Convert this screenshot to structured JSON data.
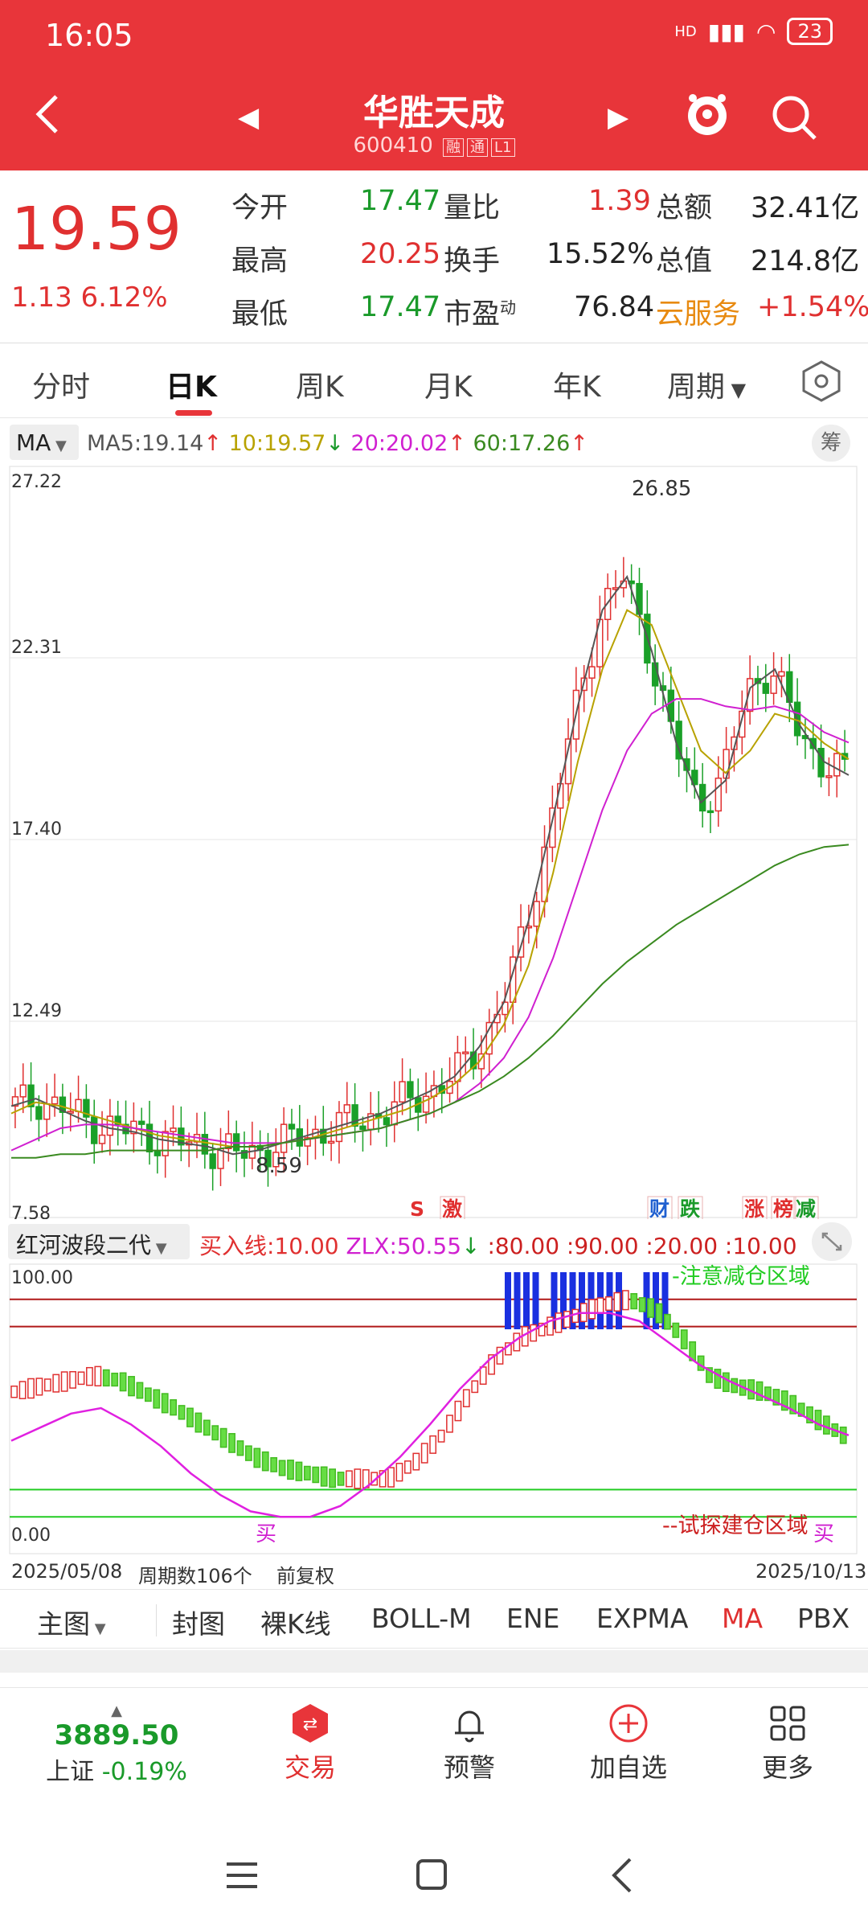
{
  "status_bar": {
    "time": "16:05",
    "battery": "23",
    "signal": "HD"
  },
  "header": {
    "stock_name": "华胜天成",
    "stock_code": "600410",
    "tags": [
      "融",
      "通",
      "L1"
    ]
  },
  "quote": {
    "price": "19.59",
    "change": "1.13",
    "change_pct": "6.12%",
    "open_label": "今开",
    "open": "17.47",
    "vol_ratio_label": "量比",
    "vol_ratio": "1.39",
    "amount_label": "总额",
    "amount": "32.41亿",
    "high_label": "最高",
    "high": "20.25",
    "turnover_label": "换手",
    "turnover": "15.52%",
    "mktcap_label": "总值",
    "mktcap": "214.8亿",
    "low_label": "最低",
    "low": "17.47",
    "pe_label": "市盈",
    "pe_sup": "动",
    "pe": "76.84",
    "sector_label": "云服务",
    "sector_change": "+1.54%"
  },
  "period_tabs": [
    "分时",
    "日K",
    "周K",
    "月K",
    "年K",
    "周期"
  ],
  "ma_legend": {
    "selector": "MA",
    "ma5": "MA5:19.14",
    "ma10": "10:19.57",
    "ma20": "20:20.02",
    "ma60": "60:17.26",
    "chip_label": "筹",
    "colors": {
      "ma5": "#555555",
      "ma10": "#b8a200",
      "ma20": "#d020d0",
      "ma60": "#3a8a20"
    }
  },
  "chart_data": [
    {
      "type": "candlestick",
      "title": "",
      "y_axis_labels": [
        "27.22",
        "22.31",
        "17.40",
        "12.49",
        "7.58"
      ],
      "ylim": [
        7.58,
        27.22
      ],
      "max_label": "26.85",
      "min_label": "8.59",
      "event_markers": [
        "S",
        "激",
        "财",
        "跌",
        "涨",
        "榜",
        "减"
      ],
      "series": [
        {
          "name": "MA5",
          "values": [
            10.2,
            10.4,
            10.1,
            9.8,
            9.6,
            9.5,
            9.3,
            9.2,
            9.1,
            8.9,
            9.0,
            9.2,
            9.4,
            9.6,
            9.8,
            10.0,
            10.3,
            10.6,
            11.0,
            11.8,
            13.0,
            15.2,
            18.0,
            21.0,
            23.6,
            24.5,
            22.5,
            20.0,
            18.4,
            19.0,
            21.5,
            22.0,
            20.5,
            19.5,
            19.14
          ]
        },
        {
          "name": "MA10",
          "values": [
            10.0,
            10.3,
            10.2,
            10.0,
            9.8,
            9.6,
            9.4,
            9.3,
            9.2,
            9.1,
            9.1,
            9.2,
            9.3,
            9.5,
            9.7,
            9.9,
            10.1,
            10.4,
            10.8,
            11.4,
            12.4,
            14.0,
            16.5,
            19.5,
            22.0,
            23.6,
            23.2,
            21.5,
            19.8,
            19.2,
            19.8,
            20.8,
            20.6,
            20.0,
            19.57
          ]
        },
        {
          "name": "MA20",
          "values": [
            9.0,
            9.3,
            9.6,
            9.7,
            9.7,
            9.6,
            9.5,
            9.4,
            9.3,
            9.2,
            9.2,
            9.2,
            9.3,
            9.4,
            9.5,
            9.6,
            9.8,
            10.0,
            10.3,
            10.8,
            11.5,
            12.6,
            14.2,
            16.2,
            18.2,
            19.8,
            20.8,
            21.2,
            21.2,
            21.0,
            20.9,
            21.0,
            20.8,
            20.3,
            20.02
          ]
        },
        {
          "name": "MA60",
          "values": [
            8.8,
            8.8,
            8.9,
            8.9,
            9.0,
            9.0,
            9.0,
            9.0,
            9.0,
            9.1,
            9.1,
            9.2,
            9.3,
            9.4,
            9.5,
            9.6,
            9.8,
            10.0,
            10.3,
            10.6,
            11.0,
            11.5,
            12.1,
            12.8,
            13.5,
            14.1,
            14.6,
            15.1,
            15.5,
            15.9,
            16.3,
            16.7,
            17.0,
            17.2,
            17.26
          ]
        }
      ]
    },
    {
      "type": "line",
      "title": "",
      "y_axis_labels": [
        "100.00",
        "0.00"
      ],
      "ylim": [
        0,
        100
      ],
      "annotations": [
        "-注意减仓区域",
        "--试探建仓区域",
        "买",
        "买"
      ],
      "level_lines": [
        90,
        80,
        20,
        10
      ],
      "series": [
        {
          "name": "",
          "values": [
            38,
            43,
            48,
            50,
            44,
            36,
            26,
            18,
            12,
            10,
            10,
            14,
            22,
            32,
            44,
            57,
            68,
            76,
            82,
            85,
            85,
            82,
            74,
            66,
            60,
            55,
            50,
            44,
            40
          ]
        }
      ],
      "bars": [
        56,
        58,
        60,
        62,
        60,
        55,
        50,
        44,
        38,
        32,
        28,
        26,
        24,
        24,
        24,
        30,
        40,
        55,
        68,
        76,
        80,
        84,
        88,
        90,
        86,
        76,
        62,
        58,
        56,
        52,
        46,
        40
      ]
    }
  ],
  "indicator": {
    "selector": "红河波段二代",
    "buy_line": "买入线:10.00",
    "zlx": "ZLX:50.55",
    "levels": ":80.00 :90.00 :20.00 :10.00"
  },
  "date_row": {
    "start": "2025/05/08",
    "period_count": "周期数106个",
    "adjust": "前复权",
    "end": "2025/10/13"
  },
  "indicator_tabs": [
    "主图",
    "封图",
    "裸K线",
    "BOLL-M",
    "ENE",
    "EXPMA",
    "MA",
    "PBX"
  ],
  "bottom_nav": {
    "index_price": "3889.50",
    "index_name": "上证",
    "index_change": "-0.19%",
    "trade": "交易",
    "alert": "预警",
    "add": "加自选",
    "more": "更多"
  }
}
